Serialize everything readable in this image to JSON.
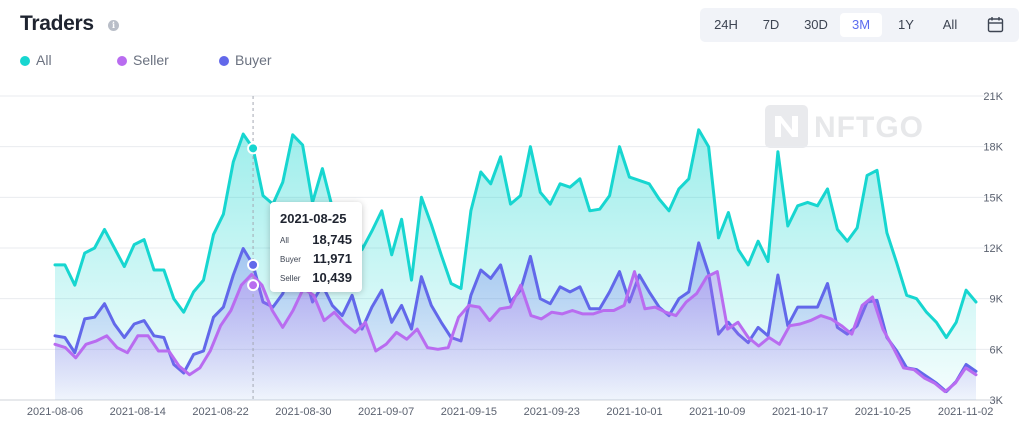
{
  "header": {
    "title": "Traders",
    "info_icon": "info-icon"
  },
  "legend": [
    {
      "label": "All",
      "color": "#17d6d0"
    },
    {
      "label": "Seller",
      "color": "#b96cf0"
    },
    {
      "label": "Buyer",
      "color": "#6268ea"
    }
  ],
  "ranges": [
    {
      "label": "24H",
      "active": false
    },
    {
      "label": "7D",
      "active": false
    },
    {
      "label": "30D",
      "active": false
    },
    {
      "label": "3M",
      "active": true
    },
    {
      "label": "1Y",
      "active": false
    },
    {
      "label": "All",
      "active": false
    }
  ],
  "calendar_icon": "calendar-icon",
  "watermark": {
    "text": "NFTGO",
    "logo_text": "N"
  },
  "tooltip": {
    "date": "2021-08-25",
    "rows": [
      {
        "label": "All",
        "value": "18,745"
      },
      {
        "label": "Buyer",
        "value": "11,971"
      },
      {
        "label": "Seller",
        "value": "10,439"
      }
    ]
  },
  "chart_data": {
    "type": "area",
    "x_start": "2021-08-06",
    "x_end": "2021-11-03",
    "x_ticks": [
      "2021-08-06",
      "2021-08-14",
      "2021-08-22",
      "2021-08-30",
      "2021-09-07",
      "2021-09-15",
      "2021-09-23",
      "2021-10-01",
      "2021-10-09",
      "2021-10-17",
      "2021-10-25",
      "2021-11-02"
    ],
    "y_ticks": [
      "3K",
      "6K",
      "9K",
      "12K",
      "15K",
      "18K",
      "21K"
    ],
    "ylim": [
      3000,
      21000
    ],
    "y_axis_position": "right",
    "grid": true,
    "legend_position": "top-left",
    "hover_date": "2021-08-25",
    "series": [
      {
        "name": "All",
        "color": "#17d6d0",
        "values": [
          11000,
          11000,
          9800,
          11700,
          12000,
          13100,
          12000,
          10900,
          12200,
          12500,
          10700,
          10700,
          9000,
          8200,
          9400,
          10100,
          12800,
          14000,
          17100,
          18745,
          17900,
          15100,
          14600,
          15900,
          18700,
          18100,
          14700,
          16700,
          14400,
          13600,
          14500,
          11900,
          13000,
          14200,
          11600,
          13700,
          10100,
          15000,
          13400,
          11600,
          9900,
          9600,
          14200,
          16500,
          15800,
          17400,
          14600,
          15100,
          18000,
          15300,
          14600,
          15800,
          15600,
          16100,
          14200,
          14300,
          15100,
          18000,
          16200,
          16000,
          15800,
          14900,
          14200,
          15500,
          16100,
          19000,
          18000,
          12600,
          14100,
          11900,
          11000,
          12400,
          11200,
          17700,
          13300,
          14500,
          14700,
          14500,
          15500,
          13100,
          12400,
          13200,
          16300,
          16600,
          12900,
          11100,
          9200,
          9000,
          8200,
          7600,
          6700,
          7600,
          9500,
          8800
        ]
      },
      {
        "name": "Buyer",
        "color": "#6268ea",
        "values": [
          6800,
          6700,
          5800,
          7800,
          7900,
          8700,
          7500,
          6700,
          7500,
          7700,
          6800,
          6700,
          5100,
          4600,
          5700,
          5900,
          7900,
          8500,
          10400,
          11971,
          11000,
          8800,
          8500,
          9300,
          11400,
          10900,
          8800,
          9800,
          8600,
          8000,
          9200,
          7200,
          8500,
          9500,
          7600,
          8600,
          7200,
          10300,
          8600,
          7600,
          6700,
          6500,
          9200,
          10700,
          10200,
          11000,
          8800,
          9500,
          11500,
          9000,
          8700,
          9700,
          9400,
          9700,
          8400,
          8400,
          9400,
          10600,
          8800,
          10400,
          9400,
          8500,
          8000,
          9000,
          9400,
          12300,
          10500,
          6900,
          7600,
          6900,
          6400,
          7300,
          6800,
          10400,
          7400,
          8500,
          8500,
          8500,
          9900,
          7300,
          6900,
          7400,
          8800,
          8900,
          6700,
          5900,
          4900,
          4800,
          4400,
          4000,
          3500,
          4100,
          5100,
          4700
        ]
      },
      {
        "name": "Seller",
        "color": "#b96cf0",
        "values": [
          6300,
          6100,
          5500,
          6300,
          6500,
          6800,
          6100,
          5800,
          6800,
          6800,
          5900,
          5900,
          5000,
          4500,
          4900,
          5900,
          7400,
          8300,
          9800,
          10439,
          9800,
          8300,
          7300,
          8300,
          9600,
          9200,
          7700,
          8200,
          7500,
          7000,
          7600,
          5900,
          6300,
          7000,
          6600,
          7200,
          6100,
          6000,
          6100,
          7900,
          8600,
          8500,
          7700,
          8400,
          8500,
          9800,
          8000,
          7800,
          8200,
          8100,
          8300,
          8100,
          8100,
          8300,
          8300,
          8600,
          10600,
          8400,
          8500,
          8200,
          8000,
          8800,
          9300,
          10300,
          10600,
          7200,
          7600,
          6700,
          6200,
          6700,
          6300,
          7400,
          7500,
          7700,
          8000,
          7800,
          7400,
          6900,
          8600,
          9100,
          7200,
          6100,
          4900,
          4800,
          4300,
          4000,
          3500,
          4000,
          4900,
          4500
        ]
      }
    ]
  }
}
